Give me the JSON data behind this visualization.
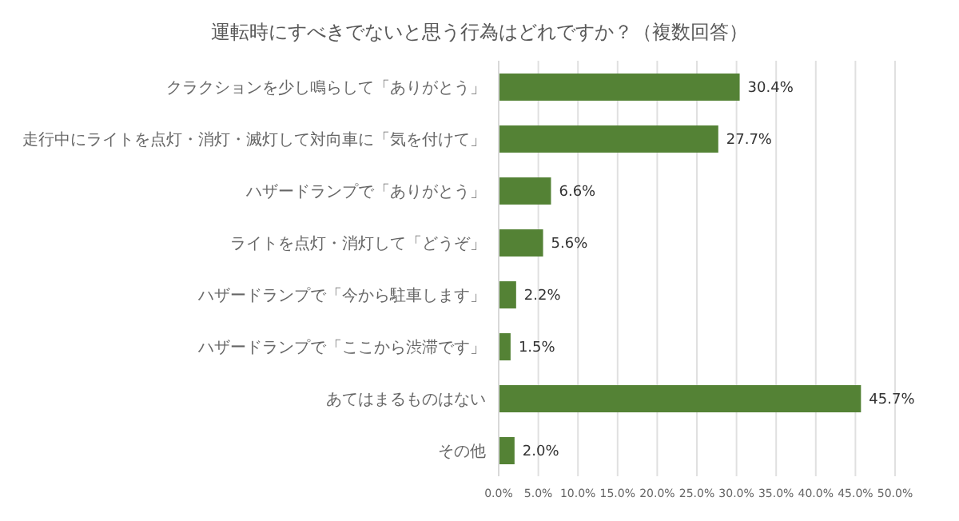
{
  "chart_data": {
    "type": "bar",
    "orientation": "horizontal",
    "title": "運転時にすべきでないと思う行為はどれですか？（複数回答）",
    "categories": [
      "クラクションを少し鳴らして「ありがとう」",
      "走行中にライトを点灯・消灯・滅灯して対向車に「気を付けて」",
      "ハザードランプで「ありがとう」",
      "ライトを点灯・消灯して「どうぞ」",
      "ハザードランプで「今から駐車します」",
      "ハザードランプで「ここから渋滞です」",
      "あてはまるものはない",
      "その他"
    ],
    "values": [
      30.4,
      27.7,
      6.6,
      5.6,
      2.2,
      1.5,
      45.7,
      2.0
    ],
    "value_labels": [
      "30.4%",
      "27.7%",
      "6.6%",
      "5.6%",
      "2.2%",
      "1.5%",
      "45.7%",
      "2.0%"
    ],
    "color": "#548235",
    "xlim": [
      0,
      50
    ],
    "xticks": [
      {
        "value": 0,
        "label": "0.0%"
      },
      {
        "value": 5,
        "label": "5.0%"
      },
      {
        "value": 10,
        "label": "10.0%"
      },
      {
        "value": 15,
        "label": "15.0%"
      },
      {
        "value": 20,
        "label": "20.0%"
      },
      {
        "value": 25,
        "label": "25.0%"
      },
      {
        "value": 30,
        "label": "30.0%"
      },
      {
        "value": 35,
        "label": "35.0%"
      },
      {
        "value": 40,
        "label": "40.0%"
      },
      {
        "value": 45,
        "label": "45.0%"
      },
      {
        "value": 50,
        "label": "50.0%"
      }
    ],
    "grid": "x"
  }
}
